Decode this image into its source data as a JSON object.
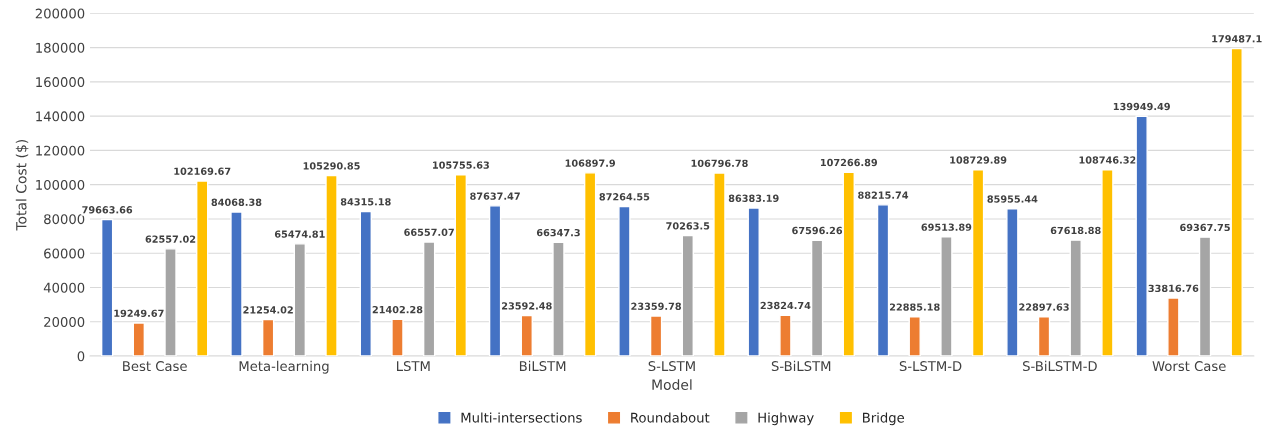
{
  "chart_data": {
    "type": "bar",
    "xlabel": "Model",
    "ylabel": "Total Cost ($)",
    "categories": [
      "Best Case",
      "Meta-learning",
      "LSTM",
      "BiLSTM",
      "S-LSTM",
      "S-BiLSTM",
      "S-LSTM-D",
      "S-BiLSTM-D",
      "Worst Case"
    ],
    "series": [
      {
        "name": "Multi-intersections",
        "color": "#4472c4",
        "values": [
          79663.66,
          84068.38,
          84315.18,
          87637.47,
          87264.55,
          86383.19,
          88215.74,
          85955.44,
          139949.49
        ]
      },
      {
        "name": "Roundabout",
        "color": "#ed7d31",
        "values": [
          19249.67,
          21254.02,
          21402.28,
          23592.48,
          23359.78,
          23824.74,
          22885.18,
          22897.63,
          33816.76
        ]
      },
      {
        "name": "Highway",
        "color": "#a5a5a5",
        "values": [
          62557.02,
          65474.81,
          66557.07,
          66347.3,
          70263.5,
          67596.26,
          69513.89,
          67618.88,
          69367.75
        ]
      },
      {
        "name": "Bridge",
        "color": "#ffc000",
        "values": [
          102169.67,
          105290.85,
          105755.63,
          106897.9,
          106796.78,
          107266.89,
          108729.89,
          108746.32,
          179487.1
        ]
      }
    ],
    "ylim": [
      0,
      200000
    ],
    "yticks": [
      0,
      20000,
      40000,
      60000,
      80000,
      100000,
      120000,
      140000,
      160000,
      180000,
      200000
    ],
    "grid": "y",
    "legend": "bottom",
    "data_labels": true
  }
}
